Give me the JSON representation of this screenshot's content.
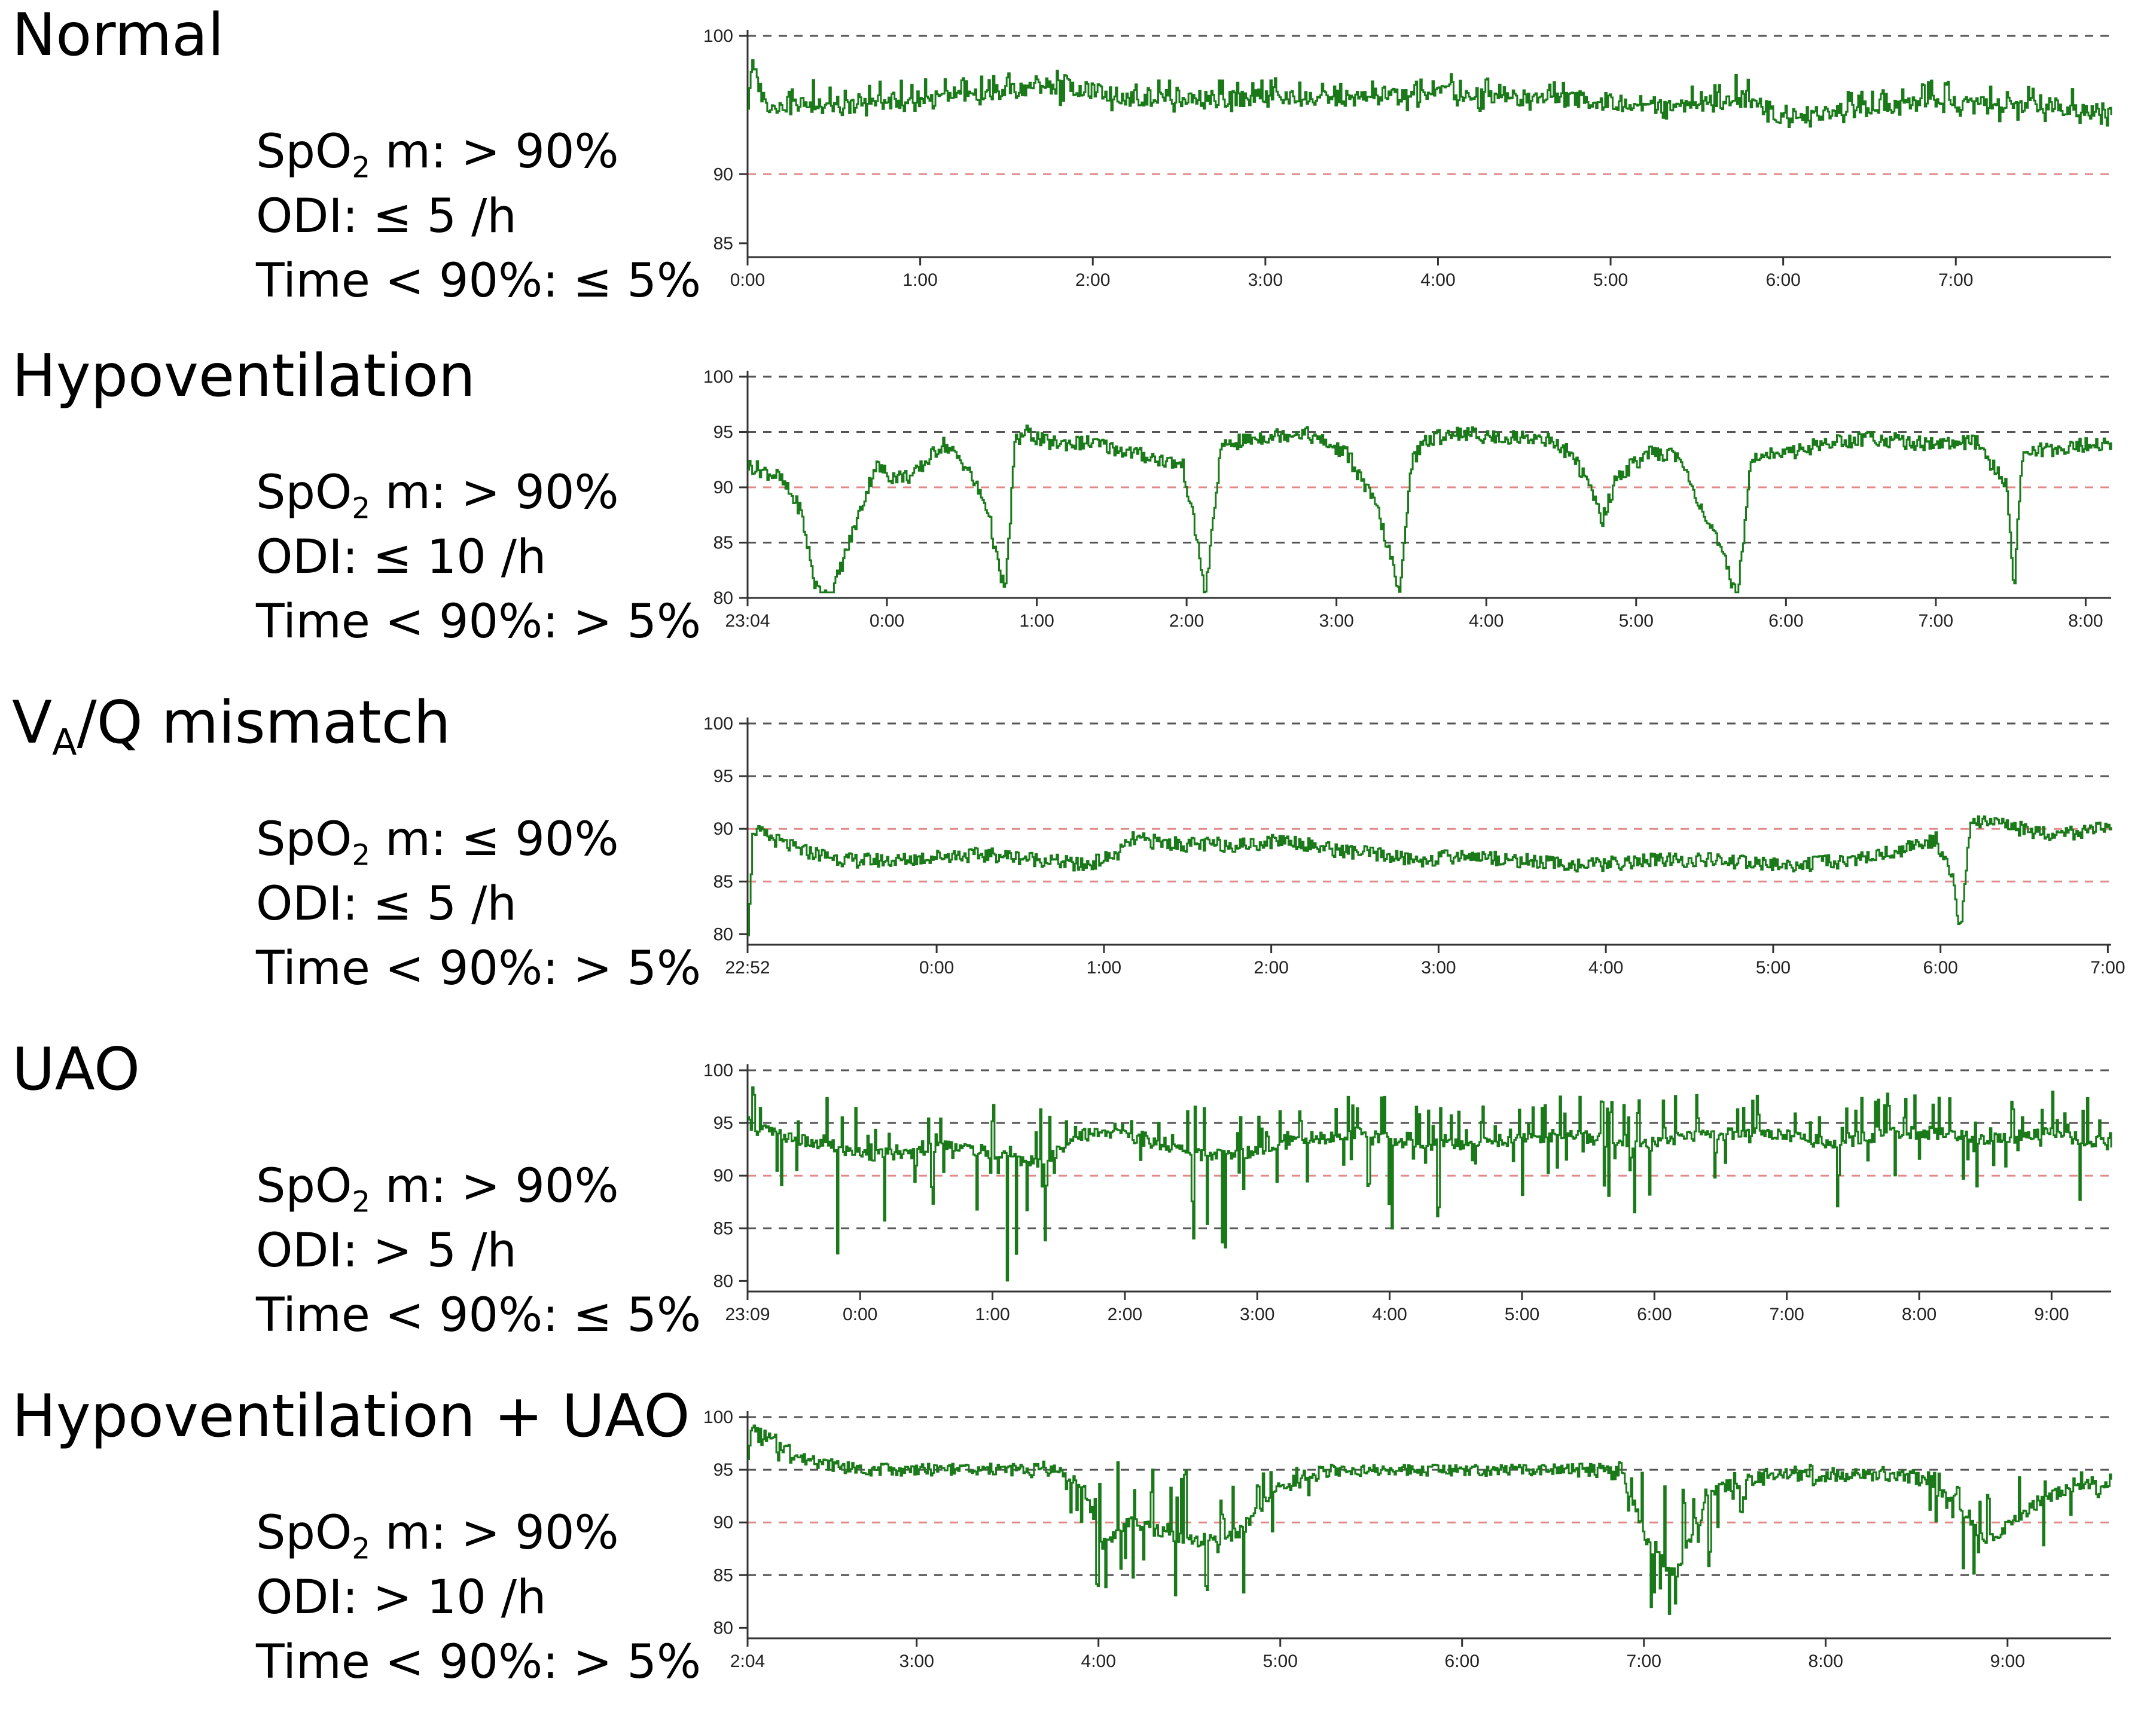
{
  "panels": [
    {
      "title": "Normal",
      "title_sub": "",
      "title_rest": "",
      "criteria": [
        {
          "prefix": "SpO",
          "sub": "2",
          "suffix": " m: > 90%"
        },
        {
          "prefix": "ODI: ≤ 5 /h",
          "sub": "",
          "suffix": ""
        },
        {
          "prefix": "Time < 90%: ≤ 5%",
          "sub": "",
          "suffix": ""
        }
      ]
    },
    {
      "title": "Hypoventilation",
      "title_sub": "",
      "title_rest": "",
      "criteria": [
        {
          "prefix": "SpO",
          "sub": "2",
          "suffix": " m: > 90%"
        },
        {
          "prefix": "ODI: ≤ 10 /h",
          "sub": "",
          "suffix": ""
        },
        {
          "prefix": "Time < 90%: > 5%",
          "sub": "",
          "suffix": ""
        }
      ]
    },
    {
      "title": "V",
      "title_sub": "A",
      "title_rest": "/Q mismatch",
      "criteria": [
        {
          "prefix": "SpO",
          "sub": "2",
          "suffix": " m: ≤ 90%"
        },
        {
          "prefix": "ODI: ≤ 5 /h",
          "sub": "",
          "suffix": ""
        },
        {
          "prefix": "Time < 90%: > 5%",
          "sub": "",
          "suffix": ""
        }
      ]
    },
    {
      "title": "UAO",
      "title_sub": "",
      "title_rest": "",
      "criteria": [
        {
          "prefix": "SpO",
          "sub": "2",
          "suffix": " m: > 90%"
        },
        {
          "prefix": "ODI: > 5 /h",
          "sub": "",
          "suffix": ""
        },
        {
          "prefix": "Time < 90%: ≤ 5%",
          "sub": "",
          "suffix": ""
        }
      ]
    },
    {
      "title": "Hypoventilation + UAO",
      "title_sub": "",
      "title_rest": "",
      "criteria": [
        {
          "prefix": "SpO",
          "sub": "2",
          "suffix": " m: > 90%"
        },
        {
          "prefix": "ODI: > 10 /h",
          "sub": "",
          "suffix": ""
        },
        {
          "prefix": "Time < 90%: > 5%",
          "sub": "",
          "suffix": ""
        }
      ]
    }
  ],
  "chart_data": [
    {
      "type": "line",
      "title": "Normal",
      "xlabel": "",
      "ylabel": "",
      "x_unit": "hours",
      "xlim": [
        0,
        7.9
      ],
      "ylim": [
        84,
        100
      ],
      "y_ticks": [
        100,
        90,
        85
      ],
      "x_ticks": [
        {
          "x": 0,
          "label": "0:00"
        },
        {
          "x": 1,
          "label": "1:00"
        },
        {
          "x": 2,
          "label": "2:00"
        },
        {
          "x": 3,
          "label": "3:00"
        },
        {
          "x": 4,
          "label": "4:00"
        },
        {
          "x": 5,
          "label": "5:00"
        },
        {
          "x": 6,
          "label": "6:00"
        },
        {
          "x": 7,
          "label": "7:00"
        }
      ],
      "reference_lines": [
        {
          "y": 100,
          "color": "#555555"
        },
        {
          "y": 90,
          "color": "#e08a8a"
        }
      ],
      "line_color": "#1a7a1a",
      "grid": false,
      "series": [
        {
          "x": [
            0,
            0.02,
            0.1,
            0.3,
            0.6,
            1.0,
            1.3,
            1.5,
            1.7,
            2.0,
            2.2,
            2.5,
            3.0,
            3.5,
            4.0,
            4.5,
            4.8,
            5.0,
            5.5,
            5.8,
            6.0,
            6.2,
            6.5,
            7.0,
            7.5,
            7.9
          ],
          "y": [
            95,
            98,
            95,
            95,
            95,
            95.5,
            95.5,
            96,
            96.5,
            96,
            95.5,
            95.5,
            95.5,
            95.5,
            96,
            95.5,
            95.5,
            95,
            95,
            95.5,
            94,
            94.5,
            95,
            95,
            95,
            94.5
          ],
          "y_low": [
            95,
            96,
            94,
            94,
            94,
            94.5,
            94.5,
            95,
            95,
            94.5,
            94.5,
            94.5,
            94.5,
            94.5,
            94.5,
            94.5,
            94.5,
            94,
            94,
            94,
            93,
            93.5,
            93.5,
            94,
            93.5,
            93.5
          ],
          "y_high": [
            95,
            98,
            96,
            97,
            96.5,
            97,
            97,
            97.5,
            98,
            97,
            96.5,
            97,
            97,
            97,
            97.5,
            97,
            96.5,
            96,
            96.5,
            97.5,
            95,
            95.5,
            96.5,
            97,
            96.5,
            96
          ]
        }
      ]
    },
    {
      "type": "line",
      "title": "Hypoventilation",
      "xlabel": "",
      "ylabel": "",
      "x_unit": "hours since 23:04",
      "xlim": [
        0,
        9.1
      ],
      "ylim": [
        80,
        100
      ],
      "y_ticks": [
        100,
        95,
        90,
        85,
        80
      ],
      "x_ticks": [
        {
          "x": 0,
          "label": "23:04"
        },
        {
          "x": 0.93,
          "label": "0:00"
        },
        {
          "x": 1.93,
          "label": "1:00"
        },
        {
          "x": 2.93,
          "label": "2:00"
        },
        {
          "x": 3.93,
          "label": "3:00"
        },
        {
          "x": 4.93,
          "label": "4:00"
        },
        {
          "x": 5.93,
          "label": "5:00"
        },
        {
          "x": 6.93,
          "label": "6:00"
        },
        {
          "x": 7.93,
          "label": "7:00"
        },
        {
          "x": 8.93,
          "label": "8:00"
        }
      ],
      "reference_lines": [
        {
          "y": 100,
          "color": "#555555"
        },
        {
          "y": 95,
          "color": "#555555"
        },
        {
          "y": 90,
          "color": "#e08a8a"
        },
        {
          "y": 85,
          "color": "#555555"
        }
      ],
      "line_color": "#1a7a1a",
      "grid": false,
      "series": [
        {
          "x": [
            0,
            0.2,
            0.35,
            0.45,
            0.55,
            0.65,
            0.75,
            0.85,
            0.95,
            1.1,
            1.3,
            1.45,
            1.6,
            1.68,
            1.72,
            1.78,
            1.85,
            2.0,
            2.3,
            2.6,
            2.9,
            3.0,
            3.05,
            3.15,
            3.2,
            3.25,
            3.4,
            3.7,
            4.0,
            4.2,
            4.3,
            4.35,
            4.42,
            4.5,
            4.7,
            5.0,
            5.3,
            5.5,
            5.65,
            5.7,
            5.8,
            6.0,
            6.2,
            6.5,
            6.6,
            6.7,
            6.9,
            7.2,
            7.5,
            7.8,
            8.0,
            8.2,
            8.4,
            8.45,
            8.5,
            8.7,
            9.1
          ],
          "y": [
            92,
            91,
            88,
            81,
            80,
            84,
            88,
            92,
            91,
            91,
            94,
            92,
            88,
            82,
            81,
            94,
            95,
            94,
            94,
            93,
            92,
            85,
            80,
            93,
            94,
            94,
            94.5,
            95,
            93,
            88,
            83,
            80,
            92,
            94,
            95,
            94.5,
            94.5,
            93,
            89,
            87,
            91,
            93,
            93,
            84,
            80,
            93,
            93,
            94,
            94.5,
            94,
            94,
            94,
            90,
            81,
            93,
            93.5,
            94
          ]
        }
      ]
    },
    {
      "type": "line",
      "title": "VA/Q mismatch",
      "xlabel": "",
      "ylabel": "",
      "x_unit": "hours since 22:52",
      "xlim": [
        0,
        8.15
      ],
      "ylim": [
        79,
        100
      ],
      "y_ticks": [
        100,
        95,
        90,
        85,
        80
      ],
      "x_ticks": [
        {
          "x": 0,
          "label": "22:52"
        },
        {
          "x": 1.13,
          "label": "0:00"
        },
        {
          "x": 2.13,
          "label": "1:00"
        },
        {
          "x": 3.13,
          "label": "2:00"
        },
        {
          "x": 4.13,
          "label": "3:00"
        },
        {
          "x": 5.13,
          "label": "4:00"
        },
        {
          "x": 6.13,
          "label": "5:00"
        },
        {
          "x": 7.13,
          "label": "6:00"
        },
        {
          "x": 8.13,
          "label": "7:00"
        }
      ],
      "reference_lines": [
        {
          "y": 100,
          "color": "#555555"
        },
        {
          "y": 95,
          "color": "#555555"
        },
        {
          "y": 90,
          "color": "#e08a8a"
        },
        {
          "y": 85,
          "color": "#e08a8a"
        }
      ],
      "line_color": "#1a7a1a",
      "grid": false,
      "series": [
        {
          "x": [
            0,
            0.03,
            0.08,
            0.3,
            0.6,
            0.9,
            1.2,
            1.5,
            1.8,
            2.0,
            2.2,
            2.3,
            2.6,
            3.0,
            3.2,
            3.5,
            3.8,
            4.0,
            4.3,
            4.6,
            5.0,
            5.4,
            5.8,
            6.2,
            6.6,
            6.9,
            7.1,
            7.2,
            7.25,
            7.3,
            7.4,
            7.6,
            7.8,
            8.15
          ],
          "y": [
            80.5,
            90,
            89.5,
            88,
            87,
            87,
            87.5,
            87.5,
            87,
            86.5,
            87.5,
            89,
            88.5,
            88.5,
            89,
            88,
            87.5,
            87,
            87.5,
            87,
            86.5,
            87,
            87,
            86.5,
            87,
            88,
            89,
            85,
            80,
            90,
            91,
            90,
            89.5,
            90
          ]
        }
      ]
    },
    {
      "type": "line",
      "title": "UAO",
      "xlabel": "",
      "ylabel": "",
      "x_unit": "hours since 23:09",
      "xlim": [
        0,
        10.3
      ],
      "ylim": [
        79,
        100
      ],
      "y_ticks": [
        100,
        95,
        90,
        85,
        80
      ],
      "x_ticks": [
        {
          "x": 0,
          "label": "23:09"
        },
        {
          "x": 0.85,
          "label": "0:00"
        },
        {
          "x": 1.85,
          "label": "1:00"
        },
        {
          "x": 2.85,
          "label": "2:00"
        },
        {
          "x": 3.85,
          "label": "3:00"
        },
        {
          "x": 4.85,
          "label": "4:00"
        },
        {
          "x": 5.85,
          "label": "5:00"
        },
        {
          "x": 6.85,
          "label": "6:00"
        },
        {
          "x": 7.85,
          "label": "7:00"
        },
        {
          "x": 8.85,
          "label": "8:00"
        },
        {
          "x": 9.85,
          "label": "9:00"
        }
      ],
      "reference_lines": [
        {
          "y": 100,
          "color": "#555555"
        },
        {
          "y": 95,
          "color": "#555555"
        },
        {
          "y": 90,
          "color": "#e08a8a"
        },
        {
          "y": 85,
          "color": "#555555"
        }
      ],
      "line_color": "#1a7a1a",
      "grid": false,
      "series": [
        {
          "x": [
            0,
            0.2,
            0.5,
            0.9,
            1.2,
            1.5,
            1.9,
            2.2,
            2.5,
            2.8,
            3.1,
            3.4,
            3.7,
            4.0,
            4.3,
            4.6,
            5.0,
            5.4,
            5.8,
            6.2,
            6.6,
            7.0,
            7.4,
            7.8,
            8.2,
            8.6,
            9.0,
            9.4,
            9.8,
            10.3
          ],
          "y": [
            95,
            94,
            93,
            92,
            92,
            93,
            92,
            91,
            94,
            94,
            93,
            92,
            92,
            93,
            93.5,
            94,
            93,
            93,
            93.5,
            94,
            93,
            93.5,
            94,
            94,
            93,
            94,
            94,
            93.5,
            94,
            93
          ],
          "y_low": [
            93,
            88,
            82,
            80,
            86,
            88,
            80,
            80,
            93,
            93,
            85,
            80,
            84,
            87,
            88,
            89,
            82,
            87,
            88,
            89,
            86,
            86,
            88,
            89,
            86,
            89,
            88,
            89,
            89,
            86
          ],
          "y_high": [
            100,
            98,
            98,
            98,
            97,
            97,
            98,
            97,
            95,
            95,
            97,
            97,
            97,
            97,
            97,
            98,
            97,
            97,
            97,
            98,
            97,
            98,
            98,
            98,
            97,
            98,
            98,
            98,
            98,
            98
          ]
        }
      ]
    },
    {
      "type": "line",
      "title": "Hypoventilation + UAO",
      "xlabel": "",
      "ylabel": "",
      "x_unit": "hours since 2:04",
      "xlim": [
        0,
        7.5
      ],
      "ylim": [
        79,
        100
      ],
      "y_ticks": [
        100,
        95,
        90,
        85,
        80
      ],
      "x_ticks": [
        {
          "x": 0,
          "label": "2:04"
        },
        {
          "x": 0.93,
          "label": "3:00"
        },
        {
          "x": 1.93,
          "label": "4:00"
        },
        {
          "x": 2.93,
          "label": "5:00"
        },
        {
          "x": 3.93,
          "label": "6:00"
        },
        {
          "x": 4.93,
          "label": "7:00"
        },
        {
          "x": 5.93,
          "label": "8:00"
        },
        {
          "x": 6.93,
          "label": "9:00"
        }
      ],
      "reference_lines": [
        {
          "y": 100,
          "color": "#555555"
        },
        {
          "y": 95,
          "color": "#555555"
        },
        {
          "y": 90,
          "color": "#e08a8a"
        },
        {
          "y": 85,
          "color": "#555555"
        }
      ],
      "line_color": "#1a7a1a",
      "grid": false,
      "series": [
        {
          "x": [
            0,
            0.02,
            0.3,
            0.6,
            1.0,
            1.4,
            1.7,
            1.85,
            1.95,
            2.1,
            2.3,
            2.5,
            2.7,
            2.9,
            3.2,
            3.6,
            4.0,
            4.4,
            4.8,
            4.95,
            5.1,
            5.3,
            5.6,
            6.0,
            6.4,
            6.65,
            6.8,
            6.95,
            7.1,
            7.3,
            7.5
          ],
          "y": [
            96,
            99,
            96,
            95,
            95,
            95,
            95,
            93,
            88,
            90,
            89,
            88,
            89,
            93,
            95,
            95,
            95,
            95,
            95,
            88,
            85,
            93,
            94.5,
            94.5,
            94.5,
            92,
            88,
            90,
            92,
            93.5,
            94
          ],
          "y_low": [
            96,
            96,
            95,
            94.5,
            94.5,
            94.5,
            94,
            84,
            80,
            83,
            82,
            81,
            82,
            88,
            94.5,
            94.5,
            94.5,
            94.5,
            94,
            80,
            80,
            86,
            93.5,
            93.5,
            93.5,
            86,
            80,
            84,
            86,
            91,
            93
          ],
          "y_high": [
            96,
            100,
            96.5,
            95.5,
            95.5,
            95.5,
            96,
            96,
            96,
            96,
            95,
            95,
            94,
            95,
            95.5,
            95.5,
            95.5,
            95.5,
            96,
            95,
            93,
            95,
            95.5,
            95.5,
            95.5,
            95,
            94,
            95,
            95,
            95,
            95
          ]
        }
      ]
    }
  ]
}
